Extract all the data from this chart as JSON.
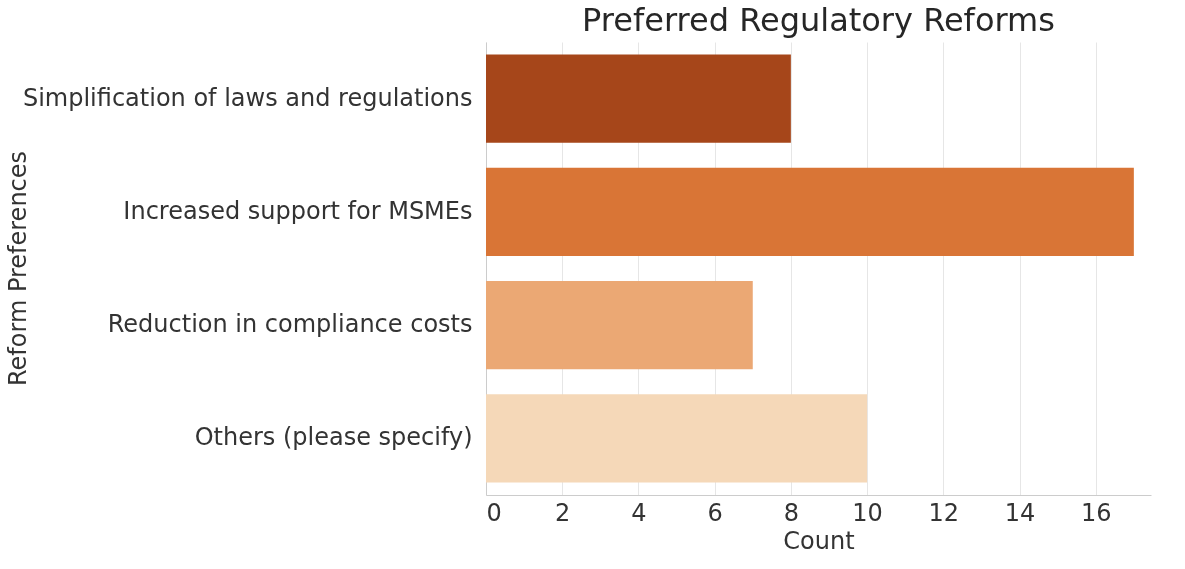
{
  "chart_data": {
    "type": "bar",
    "orientation": "horizontal",
    "title": "Preferred Regulatory Reforms",
    "xlabel": "Count",
    "ylabel": "Reform Preferences",
    "categories": [
      "Simplification of laws and regulations",
      "Increased support for MSMEs",
      "Reduction in compliance costs",
      "Others (please specify)"
    ],
    "values": [
      8,
      17,
      7,
      10
    ],
    "colors": [
      "#a6461a",
      "#d97536",
      "#eba874",
      "#f5d8b8"
    ],
    "xlim": [
      0,
      17.45
    ],
    "xticks": [
      0,
      2,
      4,
      6,
      8,
      10,
      12,
      14,
      16
    ],
    "grid": "x",
    "legend": false
  }
}
